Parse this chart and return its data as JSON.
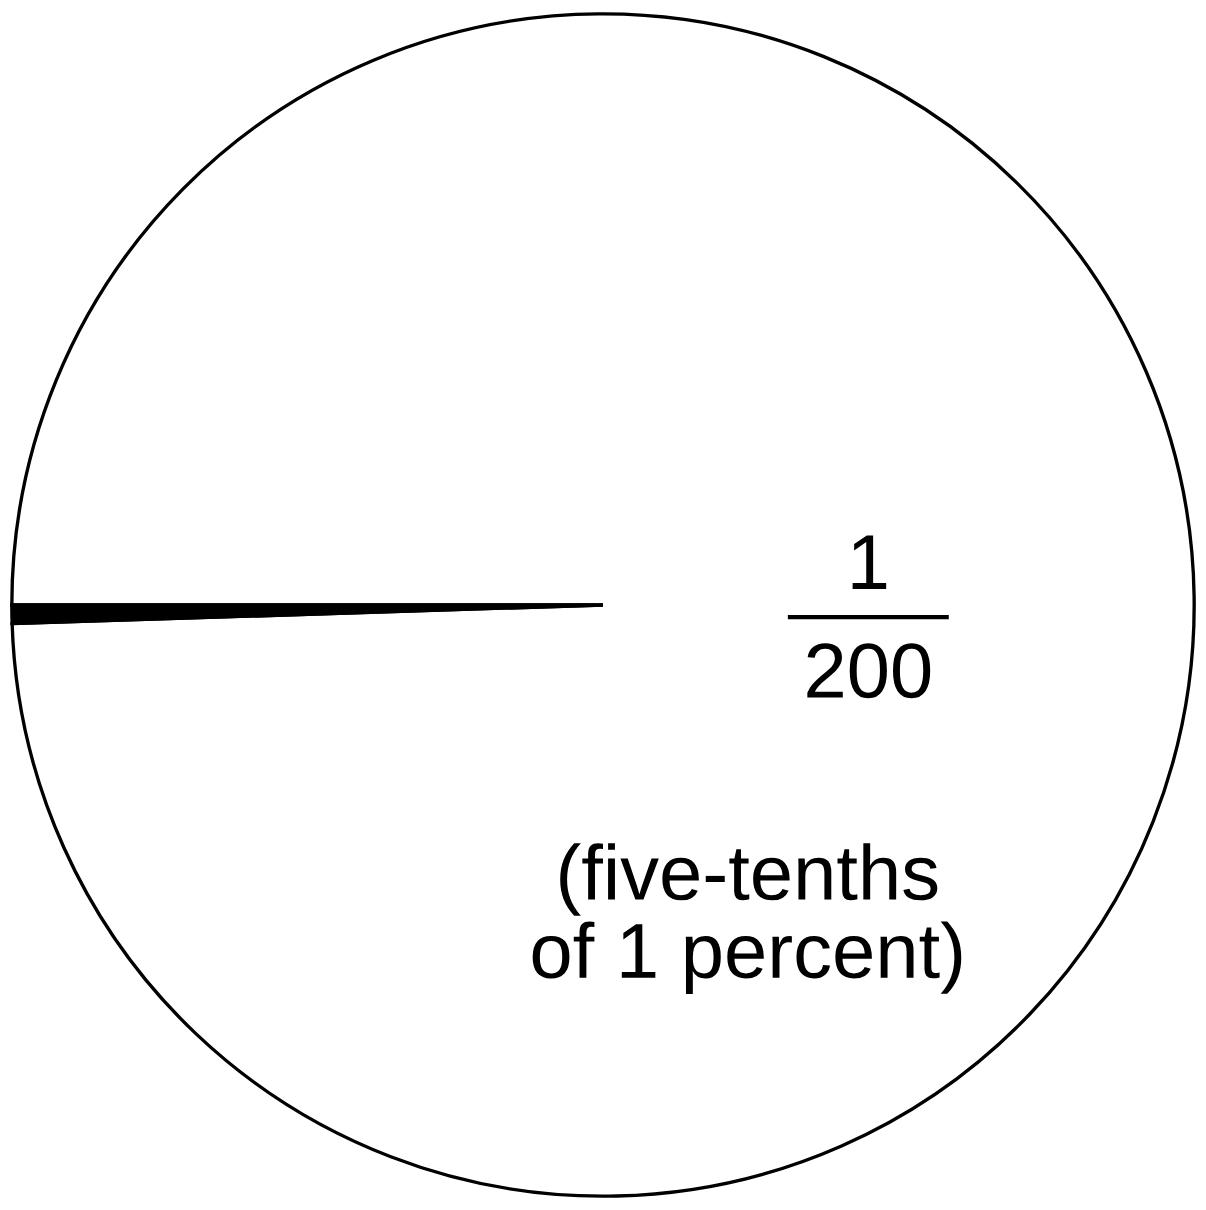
{
  "chart_data": {
    "type": "pie",
    "categories": [
      null,
      null
    ],
    "values": [
      0.5,
      99.5
    ],
    "colors": [
      "#000000",
      "#ffffff"
    ],
    "annotations": [
      "1",
      "200",
      "(five-tenths\nof 1 percent)"
    ]
  }
}
